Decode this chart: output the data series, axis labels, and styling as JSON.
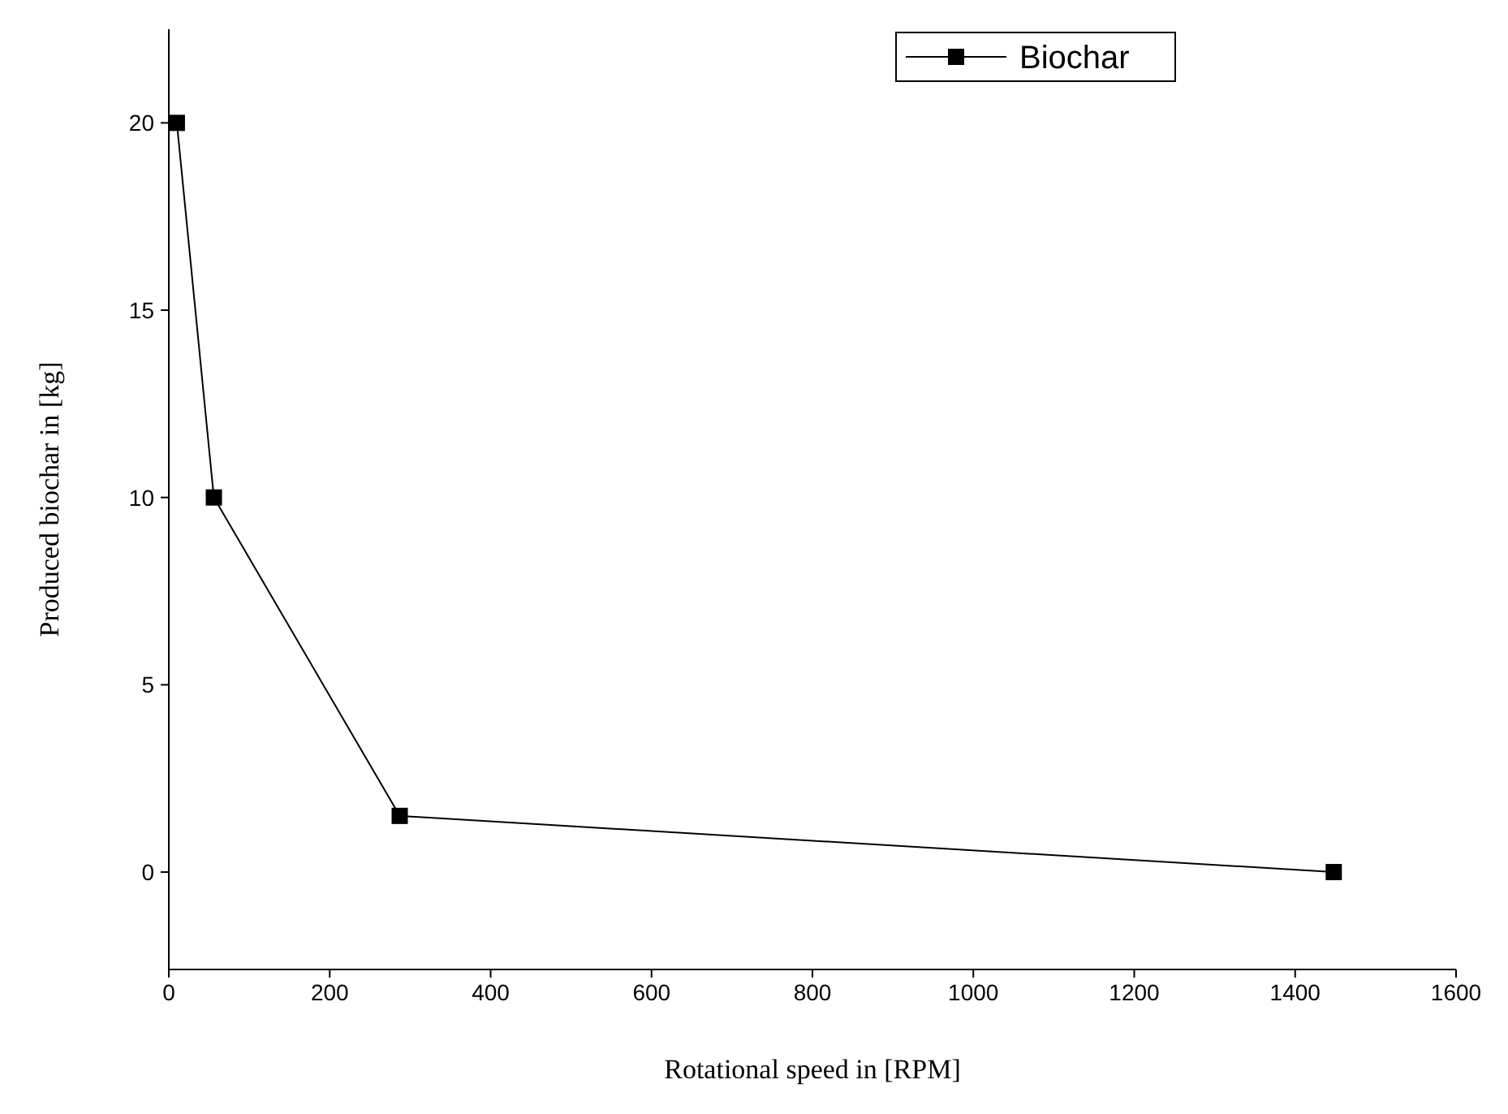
{
  "chart_data": {
    "type": "line",
    "xlabel": "Rotational speed in [RPM]",
    "ylabel": "Produced biochar in [kg]",
    "x": [
      10,
      56,
      287,
      1448
    ],
    "series": [
      {
        "name": "Biochar",
        "color": "#000000",
        "values": [
          20,
          10,
          1.5,
          0
        ]
      }
    ],
    "xlim": [
      0,
      1600
    ],
    "ylim": [
      -2.6,
      22.5
    ],
    "xticks": [
      0,
      200,
      400,
      600,
      800,
      1000,
      1200,
      1400,
      1600
    ],
    "yticks": [
      0,
      5,
      10,
      15,
      20
    ],
    "marker": "square",
    "line_style": "solid",
    "legend": "top right",
    "grid": false
  }
}
